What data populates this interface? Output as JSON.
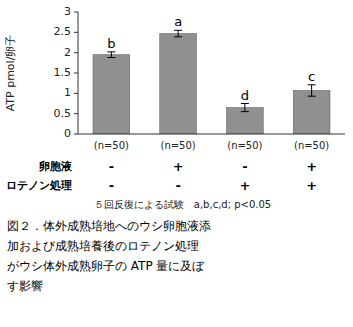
{
  "chart_data": {
    "type": "bar",
    "ylabel": "ATP pmol/卵子",
    "categories": [
      "(n=50)",
      "(n=50)",
      "(n=50)",
      "(n=50)"
    ],
    "values": [
      1.95,
      2.47,
      0.65,
      1.07
    ],
    "errors": [
      0.07,
      0.08,
      0.1,
      0.14
    ],
    "significance_labels": [
      "b",
      "a",
      "d",
      "c"
    ],
    "color": "#909090",
    "ylim": [
      0,
      3.0
    ],
    "yticks": [
      0,
      0.5,
      1,
      1.5,
      2,
      2.5,
      3
    ],
    "grid": false,
    "rows": [
      {
        "label": "卵胞液",
        "signs": [
          "-",
          "+",
          "-",
          "+"
        ]
      },
      {
        "label": "ロテノン処理",
        "signs": [
          "-",
          "-",
          "+",
          "+"
        ]
      }
    ],
    "footnote": "５回反復による試験　a,b,c,d; p<0.05",
    "caption": [
      "図２．体外成熟培地へのウシ卵胞液添",
      "加および成熟培養後のロテノン処理",
      "がウシ体外成熟卵子の ATP 量に及ぼ",
      "す影響"
    ]
  }
}
